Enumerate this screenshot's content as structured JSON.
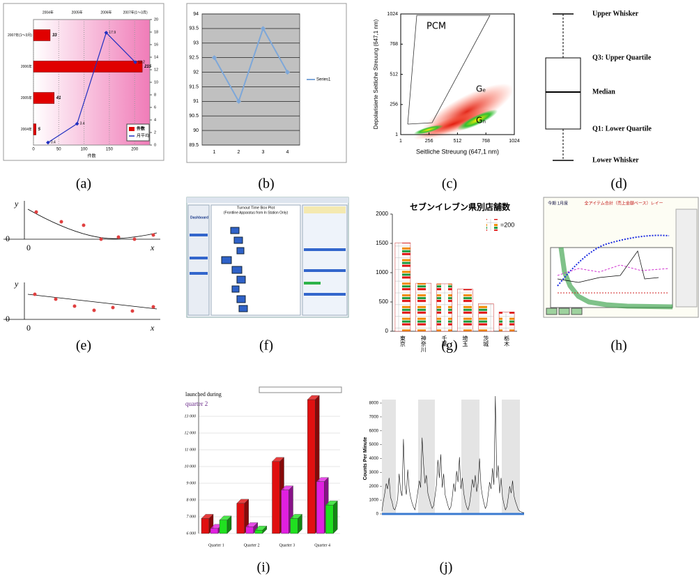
{
  "panels": [
    {
      "label": "(a)",
      "chart": {
        "type": "bar-line",
        "categories": [
          "2007年(1～3月)",
          "2006年",
          "2005年",
          "2004年"
        ],
        "top_categories": [
          "2004年",
          "2005年",
          "2006年",
          "2007年(1～3月)"
        ],
        "series": [
          {
            "name": "件数",
            "color": "#e00000",
            "values": [
              33,
              215,
              41,
              5
            ]
          },
          {
            "name": "月平均",
            "color": "#2030c0",
            "axis": "y2",
            "values": [
              0.4,
              3.4,
              17.9,
              13.2
            ]
          }
        ],
        "xlim": [
          0,
          230
        ],
        "xticks": [
          0,
          50,
          100,
          150,
          200
        ],
        "xlabel": "件数",
        "y2lim": [
          0,
          20
        ],
        "y2ticks": [
          0,
          2,
          4,
          6,
          8,
          10,
          12,
          14,
          16,
          18,
          20
        ]
      }
    },
    {
      "label": "(b)",
      "chart": {
        "type": "line",
        "categories": [
          1,
          2,
          3,
          4
        ],
        "series": [
          {
            "name": "Series1",
            "color": "#7da7d9",
            "values": [
              92.5,
              91,
              93.5,
              92
            ]
          }
        ],
        "ylim": [
          89.5,
          94
        ],
        "yticks": [
          89.5,
          90,
          90.5,
          91,
          91.5,
          92,
          92.5,
          93,
          93.5,
          94
        ],
        "grid": true
      }
    },
    {
      "label": "(c)",
      "chart": {
        "type": "density",
        "xlabel": "Seitliche Streuung (647,1 nm)",
        "ylabel": "Depolarisierte Seitliche Streuung (647,1 nm)",
        "xlim": [
          1,
          1024
        ],
        "xticks": [
          1,
          256,
          512,
          768,
          1024
        ],
        "ylim": [
          1,
          1024
        ],
        "yticks": [
          1,
          256,
          512,
          768,
          1024
        ],
        "annotations": [
          "PCM",
          "Gₑ",
          "Gₙ"
        ]
      }
    },
    {
      "label": "(d)",
      "chart": {
        "type": "boxplot-key",
        "labels": [
          "Upper Whisker",
          "Q3: Upper Quartile",
          "Median",
          "Q1: Lower Quartile",
          "Lower Whisker"
        ]
      }
    },
    {
      "label": "(e)",
      "chart": {
        "type": "regression-sketch",
        "plots": [
          {
            "y": "y",
            "origin_y": "0",
            "origin_x": "0",
            "x": "x"
          },
          {
            "y": "y",
            "origin_y": "0",
            "origin_x": "0",
            "x": "x"
          }
        ]
      }
    },
    {
      "label": "(f)",
      "chart": {
        "type": "dashboard",
        "brand": "Dashboard",
        "title": "Turnout Time Box Plot",
        "subtitle": "(Frontline Apparatus from In Station Only)"
      }
    },
    {
      "label": "(g)",
      "chart": {
        "type": "pictogram",
        "title": "セブンイレブン県別店舗数",
        "legend": "=200",
        "categories": [
          "東京",
          "神奈川",
          "千葉",
          "埼玉",
          "茨城",
          "栃木"
        ],
        "values": [
          1510,
          820,
          810,
          720,
          470,
          330
        ],
        "ylim": [
          0,
          2000
        ],
        "yticks": [
          0,
          500,
          1000,
          1500,
          2000
        ]
      }
    },
    {
      "label": "(h)",
      "chart": {
        "type": "screen",
        "header": "今期 1月度",
        "title": "全アイテム合計（売上金額ベース）レイー"
      }
    },
    {
      "label": "(i)",
      "chart": {
        "type": "bar3d",
        "title": "launched during",
        "subtitle": "quarter 2",
        "categories": [
          "Quarter 1",
          "Quarter 2",
          "Quarter 3",
          "Quarter 4"
        ],
        "series": [
          {
            "color": "#e01010",
            "values": [
              6900,
              7800,
              10300,
              14000
            ]
          },
          {
            "color": "#e020e0",
            "values": [
              6300,
              6400,
              8600,
              9100
            ]
          },
          {
            "color": "#20e020",
            "values": [
              6800,
              6200,
              6900,
              7700
            ]
          }
        ],
        "ylim": [
          6000,
          13000
        ],
        "yticks": [
          {
            "value": 6000,
            "label": "6 000"
          },
          {
            "value": 7000,
            "label": "7 000"
          },
          {
            "value": 8000,
            "label": "8 000"
          },
          {
            "value": 9000,
            "label": "9 000"
          },
          {
            "value": 10000,
            "label": "10 000"
          },
          {
            "value": 11000,
            "label": "11 000"
          },
          {
            "value": 12000,
            "label": "12 000"
          },
          {
            "value": 13000,
            "label": "13 000"
          }
        ]
      }
    },
    {
      "label": "(j)",
      "chart": {
        "type": "line",
        "ylabel": "Counts Per Minute",
        "values": [
          200,
          900,
          1500,
          2200,
          1800,
          2600,
          1200,
          900,
          400,
          300,
          600,
          1100,
          2900,
          1700,
          1300,
          5400,
          2100,
          1400,
          3200,
          1800,
          1200,
          800,
          500,
          300,
          900,
          1600,
          2400,
          1900,
          5500,
          3600,
          2200,
          2800,
          1500,
          1100,
          700,
          400,
          600,
          1300,
          2100,
          3900,
          2600,
          4300,
          1900,
          2900,
          1400,
          1000,
          600,
          300,
          500,
          1200,
          2200,
          1600,
          3100,
          2300,
          4100,
          1800,
          2600,
          1500,
          900,
          500,
          300,
          700,
          1500,
          2500,
          1900,
          2800,
          1600,
          2200,
          4000,
          2000,
          1300,
          800,
          400,
          600,
          1400,
          2300,
          1800,
          3300,
          2100,
          8500,
          2600,
          3500,
          1500,
          2600,
          1200,
          700,
          300,
          500,
          1200,
          2000,
          1500,
          2400,
          1300,
          900,
          600,
          300,
          200,
          150,
          100,
          100
        ],
        "ylim": [
          0,
          8000
        ],
        "yticks": [
          0,
          1000,
          2000,
          3000,
          4000,
          5000,
          6000,
          7000,
          8000
        ]
      }
    }
  ]
}
